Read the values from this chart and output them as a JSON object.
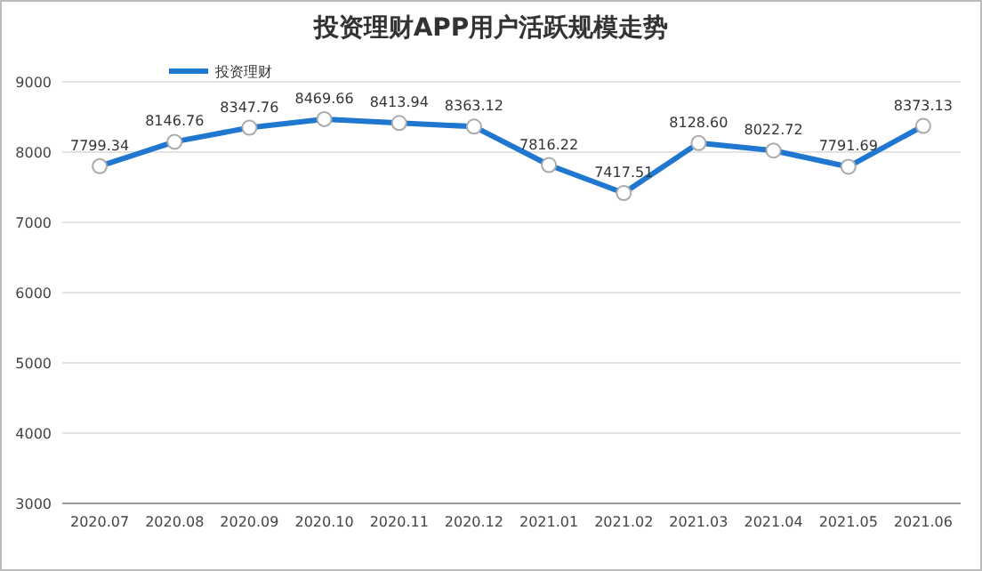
{
  "chart_data": {
    "type": "line",
    "title": "投资理财APP用户活跃规模走势",
    "categories": [
      "2020.07",
      "2020.08",
      "2020.09",
      "2020.10",
      "2020.11",
      "2020.12",
      "2021.01",
      "2021.02",
      "2021.03",
      "2021.04",
      "2021.05",
      "2021.06"
    ],
    "series": [
      {
        "name": "投资理财",
        "color": "#1f77d0",
        "values": [
          7799.34,
          8146.76,
          8347.76,
          8469.66,
          8413.94,
          8363.12,
          7816.22,
          7417.51,
          8128.6,
          8022.72,
          7791.69,
          8373.13
        ],
        "value_labels": [
          "7799.34",
          "8146.76",
          "8347.76",
          "8469.66",
          "8413.94",
          "8363.12",
          "7816.22",
          "7417.51",
          "8128.60",
          "8022.72",
          "7791.69",
          "8373.13"
        ]
      }
    ],
    "ylim": [
      3000,
      9000
    ],
    "yticks": [
      3000,
      4000,
      5000,
      6000,
      7000,
      8000,
      9000
    ],
    "grid": "y",
    "legend": "top left",
    "marker": "circle",
    "line_style": "solid"
  }
}
